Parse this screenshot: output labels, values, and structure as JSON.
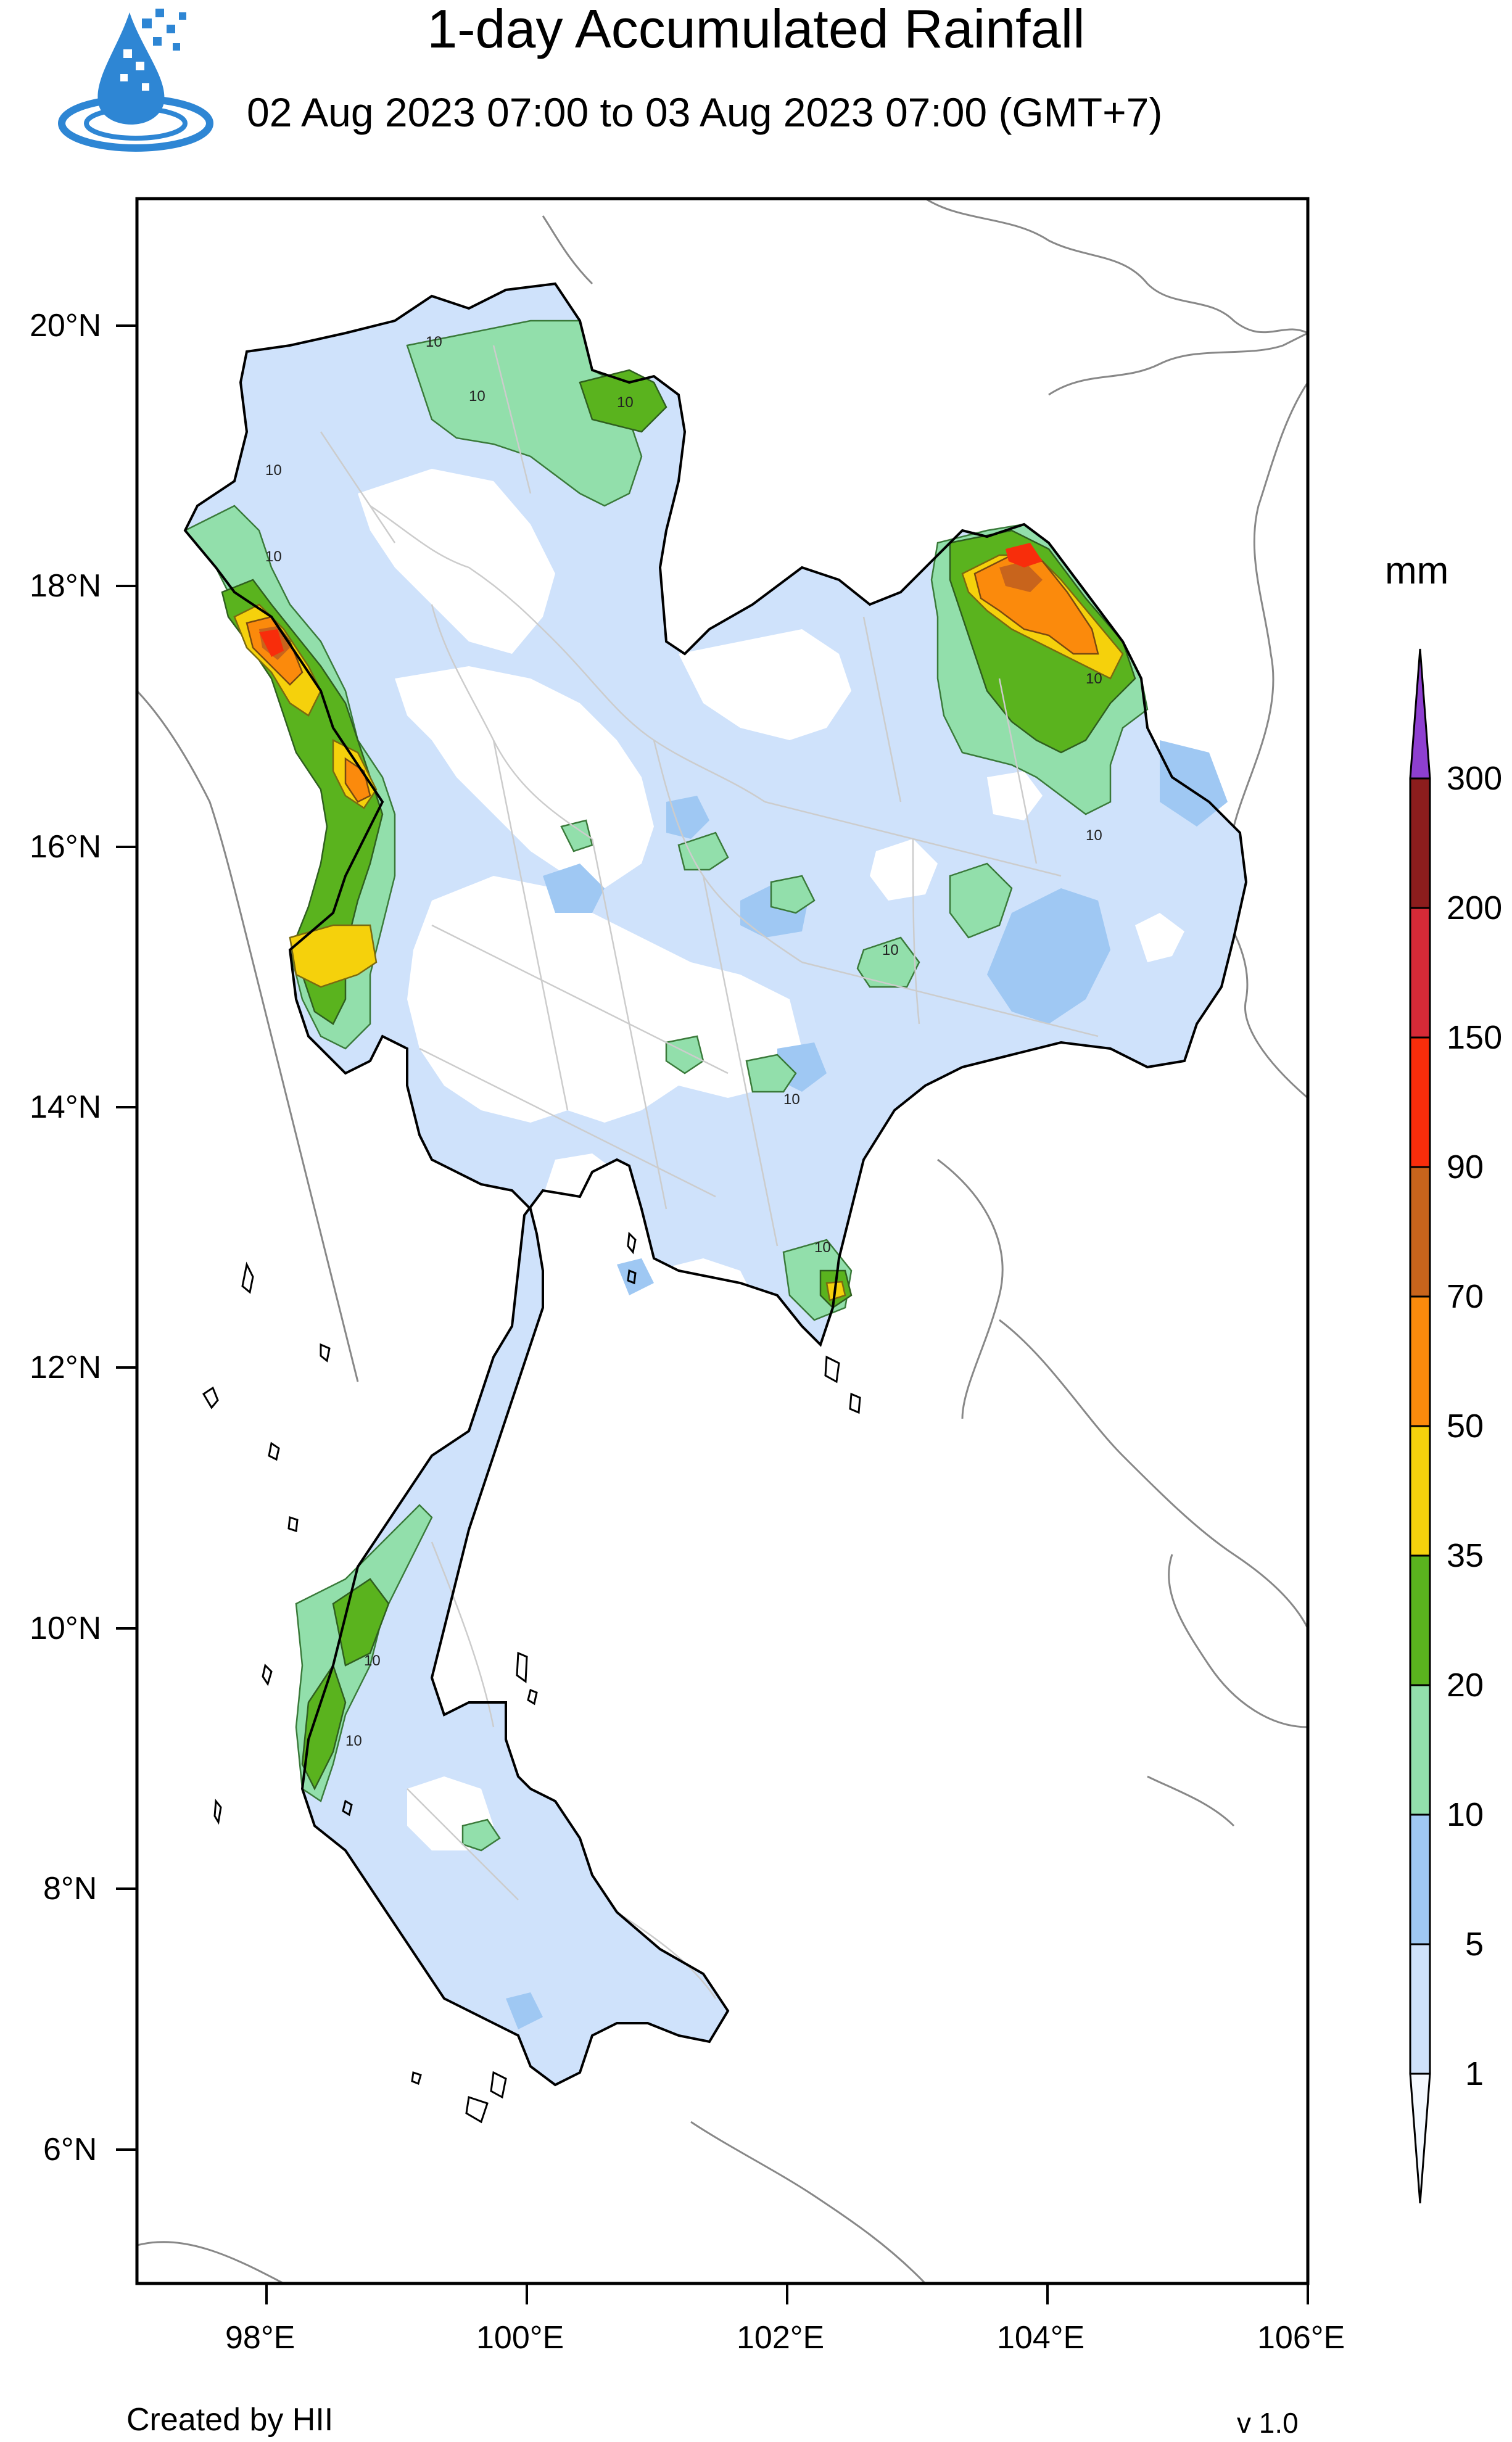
{
  "title": "1-day Accumulated Rainfall",
  "subtitle": "02 Aug 2023 07:00 to 03 Aug 2023 07:00 (GMT+7)",
  "logo_icon": "water-drop-icon",
  "unit": "mm",
  "colorbar": {
    "levels": [
      "1",
      "5",
      "10",
      "20",
      "35",
      "50",
      "70",
      "90",
      "150",
      "200",
      "300"
    ],
    "colors": [
      "#f4f9ff",
      "#cfe2fb",
      "#9fc8f3",
      "#92dfab",
      "#5ab31e",
      "#f5d10c",
      "#fb8a0c",
      "#c8641c",
      "#f82d0b",
      "#d62a37",
      "#8c1d1d",
      "#8e3fd0"
    ]
  },
  "axes": {
    "lat_labels": [
      "20°N",
      "18°N",
      "16°N",
      "14°N",
      "12°N",
      "10°N",
      "8°N",
      "6°N"
    ],
    "lon_labels": [
      "98°E",
      "100°E",
      "102°E",
      "104°E",
      "106°E"
    ]
  },
  "contour_label": "10",
  "footer": {
    "credit": "Created by HII",
    "version": "v 1.0"
  }
}
